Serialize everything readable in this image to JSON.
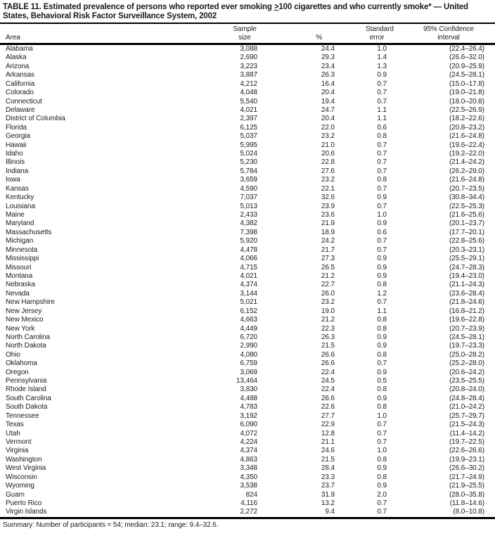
{
  "title": {
    "line1_before_geq": "TABLE 11. Estimated prevalence of persons who reported ever smoking ",
    "geq": ">",
    "line1_after_geq": "100 cigarettes and who currently smoke* — United",
    "line2": "States, Behavioral Risk Factor Surveillance System, 2002"
  },
  "header": {
    "area": "Area",
    "sample_l1": "Sample",
    "sample_l2": "size",
    "pct": "%",
    "se_l1": "Standard",
    "se_l2": "error",
    "ci_l1": "95% Confidence",
    "ci_l2": "interval"
  },
  "rows": [
    [
      "Alabama",
      "3,088",
      "24.4",
      "1.0",
      "(22.4–26.4)"
    ],
    [
      "Alaska",
      "2,690",
      "29.3",
      "1.4",
      "(26.6–32.0)"
    ],
    [
      "Arizona",
      "3,223",
      "23.4",
      "1.3",
      "(20.9–25.9)"
    ],
    [
      "Arkansas",
      "3,887",
      "26.3",
      "0.9",
      "(24.5–28.1)"
    ],
    [
      "California",
      "4,212",
      "16.4",
      "0.7",
      "(15.0–17.8)"
    ],
    [
      "Colorado",
      "4,048",
      "20.4",
      "0.7",
      "(19.0–21.8)"
    ],
    [
      "Connecticut",
      "5,540",
      "19.4",
      "0.7",
      "(18.0–20.8)"
    ],
    [
      "Delaware",
      "4,021",
      "24.7",
      "1.1",
      "(22.5–26.9)"
    ],
    [
      "District of Columbia",
      "2,397",
      "20.4",
      "1.1",
      "(18.2–22.6)"
    ],
    [
      "Florida",
      "6,125",
      "22.0",
      "0.6",
      "(20.8–23.2)"
    ],
    [
      "Georgia",
      "5,037",
      "23.2",
      "0.8",
      "(21.6–24.8)"
    ],
    [
      "Hawaii",
      "5,995",
      "21.0",
      "0.7",
      "(19.6–22.4)"
    ],
    [
      "Idaho",
      "5,024",
      "20.6",
      "0.7",
      "(19.2–22.0)"
    ],
    [
      "Illinois",
      "5,230",
      "22.8",
      "0.7",
      "(21.4–24.2)"
    ],
    [
      "Indiana",
      "5,784",
      "27.6",
      "0.7",
      "(26.2–29.0)"
    ],
    [
      "Iowa",
      "3,659",
      "23.2",
      "0.8",
      "(21.6–24.8)"
    ],
    [
      "Kansas",
      "4,590",
      "22.1",
      "0.7",
      "(20.7–23.5)"
    ],
    [
      "Kentucky",
      "7,037",
      "32.6",
      "0.9",
      "(30.8–34.4)"
    ],
    [
      "Louisiana",
      "5,013",
      "23.9",
      "0.7",
      "(22.5–25.3)"
    ],
    [
      "Maine",
      "2,433",
      "23.6",
      "1.0",
      "(21.6–25.6)"
    ],
    [
      "Maryland",
      "4,382",
      "21.9",
      "0.9",
      "(20.1–23.7)"
    ],
    [
      "Massachusetts",
      "7,398",
      "18.9",
      "0.6",
      "(17.7–20.1)"
    ],
    [
      "Michigan",
      "5,920",
      "24.2",
      "0.7",
      "(22.8–25.6)"
    ],
    [
      "Minnesota",
      "4,478",
      "21.7",
      "0.7",
      "(20.3–23.1)"
    ],
    [
      "Mississippi",
      "4,066",
      "27.3",
      "0.9",
      "(25.5–29.1)"
    ],
    [
      "Missouri",
      "4,715",
      "26.5",
      "0.9",
      "(24.7–28.3)"
    ],
    [
      "Montana",
      "4,021",
      "21.2",
      "0.9",
      "(19.4–23.0)"
    ],
    [
      "Nebraska",
      "4,374",
      "22.7",
      "0.8",
      "(21.1–24.3)"
    ],
    [
      "Nevada",
      "3,144",
      "26.0",
      "1.2",
      "(23.6–28.4)"
    ],
    [
      "New Hampshire",
      "5,021",
      "23.2",
      "0.7",
      "(21.8–24.6)"
    ],
    [
      "New Jersey",
      "6,152",
      "19.0",
      "1.1",
      "(16.8–21.2)"
    ],
    [
      "New Mexico",
      "4,663",
      "21.2",
      "0.8",
      "(19.6–22.8)"
    ],
    [
      "New York",
      "4,449",
      "22.3",
      "0.8",
      "(20.7–23.9)"
    ],
    [
      "North Carolina",
      "6,720",
      "26.3",
      "0.9",
      "(24.5–28.1)"
    ],
    [
      "North Dakota",
      "2,990",
      "21.5",
      "0.9",
      "(19.7–23.3)"
    ],
    [
      "Ohio",
      "4,080",
      "26.6",
      "0.8",
      "(25.0–28.2)"
    ],
    [
      "Oklahoma",
      "6,759",
      "26.6",
      "0.7",
      "(25.2–28.0)"
    ],
    [
      "Oregon",
      "3,069",
      "22.4",
      "0.9",
      "(20.6–24.2)"
    ],
    [
      "Pennsylvania",
      "13,464",
      "24.5",
      "0.5",
      "(23.5–25.5)"
    ],
    [
      "Rhode Island",
      "3,830",
      "22.4",
      "0.8",
      "(20.8–24.0)"
    ],
    [
      "South Carolina",
      "4,488",
      "26.6",
      "0.9",
      "(24.8–28.4)"
    ],
    [
      "South Dakota",
      "4,783",
      "22.6",
      "0.8",
      "(21.0–24.2)"
    ],
    [
      "Tennessee",
      "3,192",
      "27.7",
      "1.0",
      "(25.7–29.7)"
    ],
    [
      "Texas",
      "6,090",
      "22.9",
      "0.7",
      "(21.5–24.3)"
    ],
    [
      "Utah",
      "4,072",
      "12.8",
      "0.7",
      "(11.4–14.2)"
    ],
    [
      "Vermont",
      "4,224",
      "21.1",
      "0.7",
      "(19.7–22.5)"
    ],
    [
      "Virginia",
      "4,374",
      "24.6",
      "1.0",
      "(22.6–26.6)"
    ],
    [
      "Washington",
      "4,863",
      "21.5",
      "0.8",
      "(19.9–23.1)"
    ],
    [
      "West Virginia",
      "3,348",
      "28.4",
      "0.9",
      "(26.6–30.2)"
    ],
    [
      "Wisconsin",
      "4,350",
      "23.3",
      "0.8",
      "(21.7–24.9)"
    ],
    [
      "Wyoming",
      "3,538",
      "23.7",
      "0.9",
      "(21.9–25.5)"
    ],
    [
      "Guam",
      "824",
      "31.9",
      "2.0",
      "(28.0–35.8)"
    ],
    [
      "Puerto Rico",
      "4,116",
      "13.2",
      "0.7",
      "(11.8–14.6)"
    ],
    [
      "Virgin Islands",
      "2,272",
      "9.4",
      "0.7",
      "(8.0–10.8)"
    ]
  ],
  "summary": "Summary: Number of participants = 54; median: 23.1; range: 9.4–32.6."
}
